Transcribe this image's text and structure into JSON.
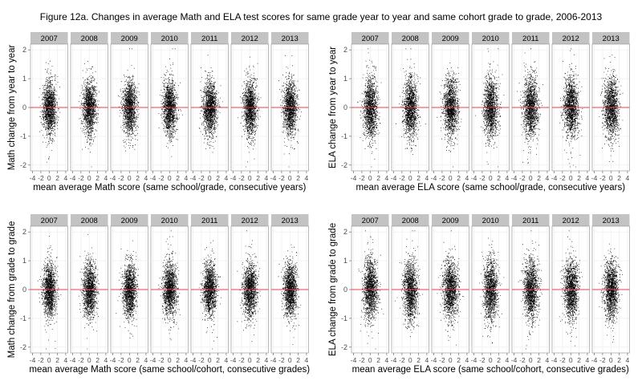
{
  "title": "Figure 12a. Changes in average Math and ELA test scores for same grade year to year and same cohort grade to grade, 2006-2013",
  "colors": {
    "points": "#000000",
    "reference_line": "#e8414a",
    "strip_bg": "#c3c3c3",
    "panel_bg": "#ffffff",
    "grid": "#ebebeb",
    "panel_border": "#8a8a8a"
  },
  "chart_data": [
    {
      "type": "scatter",
      "facet_labels": [
        "2007",
        "2008",
        "2009",
        "2010",
        "2011",
        "2012",
        "2013"
      ],
      "xlabel": "mean average Math score (same school/grade, consecutive years)",
      "ylabel": "Math change from year to year",
      "x_ticks": [
        -4,
        -2,
        0,
        2,
        4
      ],
      "y_ticks": [
        -2,
        -1,
        0,
        1,
        2
      ],
      "xlim": [
        -4.5,
        4.5
      ],
      "ylim": [
        -2.2,
        2.2
      ],
      "reference_line_y": 0,
      "point_cloud": {
        "x_center": 0,
        "x_spread": 0.8,
        "y_center": 0,
        "y_spread": 0.45,
        "points_per_facet": 1500
      }
    },
    {
      "type": "scatter",
      "facet_labels": [
        "2007",
        "2008",
        "2009",
        "2010",
        "2011",
        "2012",
        "2013"
      ],
      "xlabel": "mean average ELA score (same school/grade, consecutive years)",
      "ylabel": "ELA change from year to year",
      "x_ticks": [
        -4,
        -2,
        0,
        2,
        4
      ],
      "y_ticks": [
        -2,
        -1,
        0,
        1,
        2
      ],
      "xlim": [
        -4.5,
        4.5
      ],
      "ylim": [
        -2.2,
        2.2
      ],
      "reference_line_y": 0,
      "point_cloud": {
        "x_center": 0,
        "x_spread": 0.85,
        "y_center": 0,
        "y_spread": 0.5,
        "points_per_facet": 1500
      }
    },
    {
      "type": "scatter",
      "facet_labels": [
        "2007",
        "2008",
        "2009",
        "2010",
        "2011",
        "2012",
        "2013"
      ],
      "xlabel": "mean average Math score (same school/cohort, consecutive grades)",
      "ylabel": "Math change from grade to grade",
      "x_ticks": [
        -4,
        -2,
        0,
        2,
        4
      ],
      "y_ticks": [
        -2,
        -1,
        0,
        1,
        2
      ],
      "xlim": [
        -4.5,
        4.5
      ],
      "ylim": [
        -2.2,
        2.2
      ],
      "reference_line_y": 0,
      "point_cloud": {
        "x_center": 0,
        "x_spread": 0.8,
        "y_center": 0,
        "y_spread": 0.45,
        "points_per_facet": 1500
      }
    },
    {
      "type": "scatter",
      "facet_labels": [
        "2007",
        "2008",
        "2009",
        "2010",
        "2011",
        "2012",
        "2013"
      ],
      "xlabel": "mean average ELA score (same school/cohort, consecutive grades)",
      "ylabel": "ELA change from grade to grade",
      "x_ticks": [
        -4,
        -2,
        0,
        2,
        4
      ],
      "y_ticks": [
        -2,
        -1,
        0,
        1,
        2
      ],
      "xlim": [
        -4.5,
        4.5
      ],
      "ylim": [
        -2.2,
        2.2
      ],
      "reference_line_y": 0,
      "point_cloud": {
        "x_center": 0,
        "x_spread": 0.85,
        "y_center": 0,
        "y_spread": 0.5,
        "points_per_facet": 1500
      }
    }
  ]
}
